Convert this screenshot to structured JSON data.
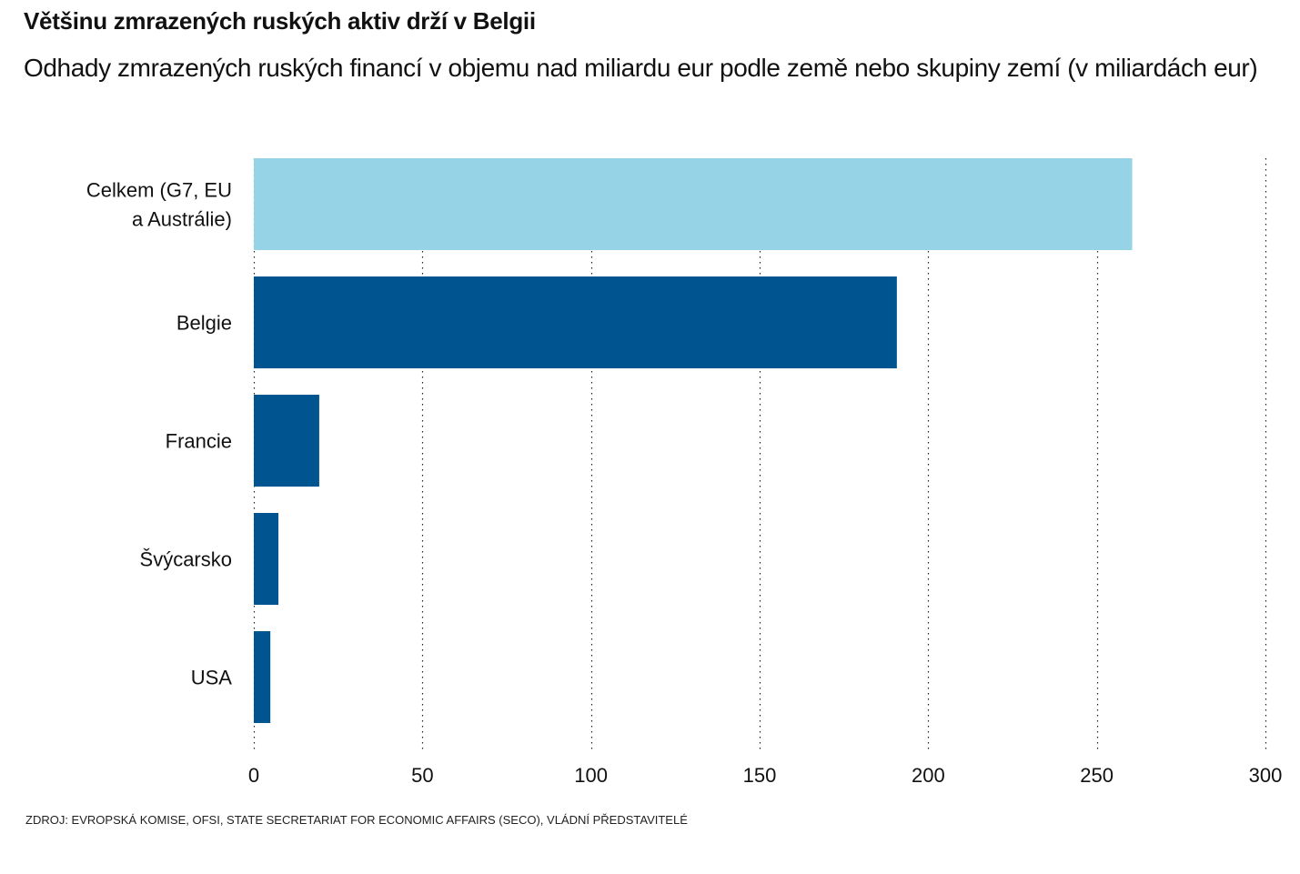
{
  "header": {
    "title": "Většinu zmrazených ruských aktiv drží v Belgii",
    "subtitle": "Odhady zmrazených ruských financí v objemu nad miliardu eur podle země nebo skupiny zemí (v miliardách eur)"
  },
  "source": "ZDROJ: EVROPSKÁ KOMISE, OFSI, STATE SECRETARIAT FOR ECONOMIC AFFAIRS (SECO), VLÁDNÍ PŘEDSTAVITELÉ",
  "colors": {
    "highlight": "#97d3e6",
    "primary": "#00548f",
    "grid": "#222222"
  },
  "chart_data": {
    "type": "bar",
    "orientation": "horizontal",
    "title": "Většinu zmrazených ruských aktiv drží v Belgii",
    "subtitle": "Odhady zmrazených ruských financí v objemu nad miliardu eur podle země nebo skupiny zemí (v miliardách eur)",
    "xlabel": "",
    "ylabel": "",
    "categories": [
      [
        "Celkem (G7, EU",
        "a Austrálie)"
      ],
      [
        "Belgie"
      ],
      [
        "Francie"
      ],
      [
        "Švýcarsko"
      ],
      [
        "USA"
      ]
    ],
    "values": [
      260.5,
      190.7,
      19.4,
      7.3,
      4.9
    ],
    "bar_color_keys": [
      "highlight",
      "primary",
      "primary",
      "primary",
      "primary"
    ],
    "xlim": [
      0,
      300
    ],
    "xticks": [
      0,
      50,
      100,
      150,
      200,
      250,
      300
    ],
    "grid": "vertical dotted",
    "legend": "none"
  }
}
